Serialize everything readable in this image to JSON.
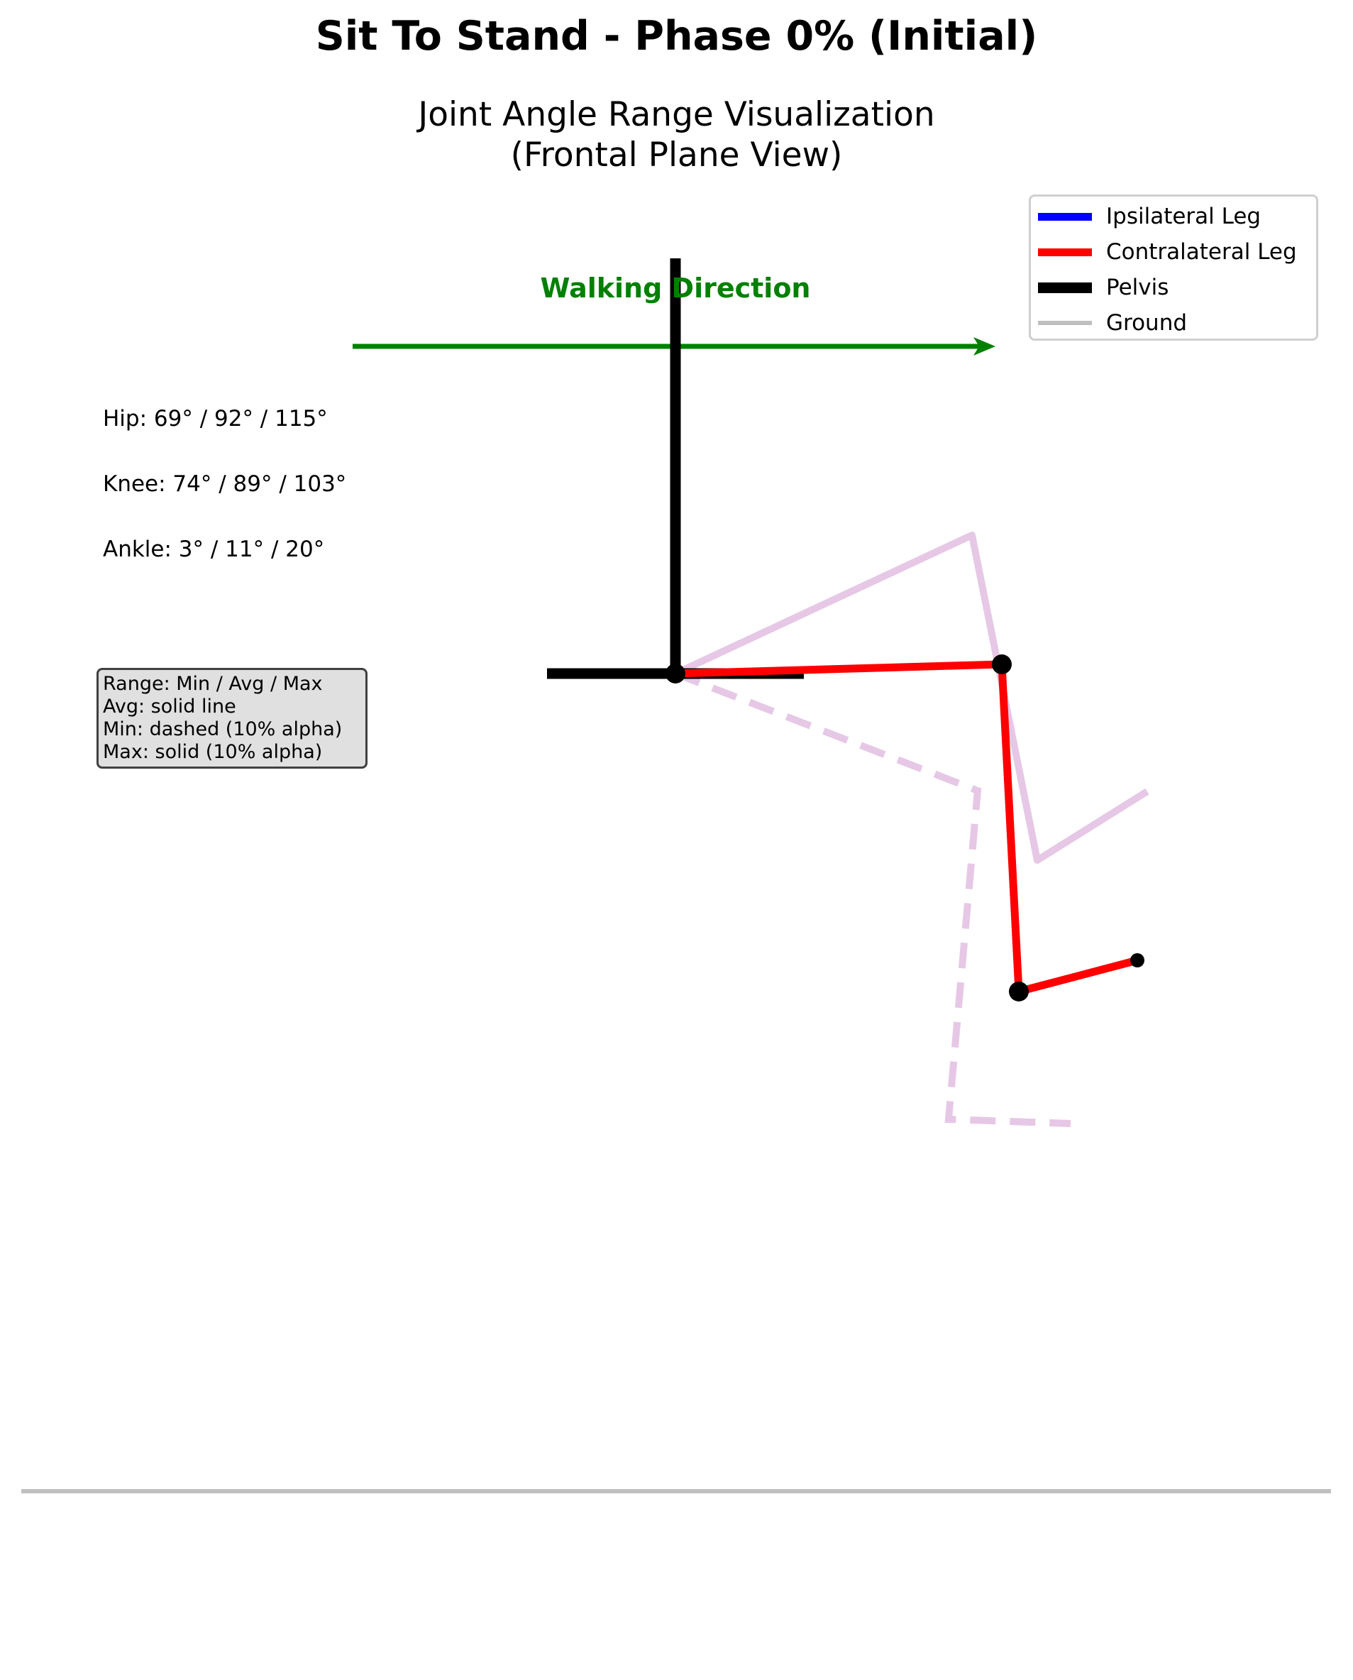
{
  "title": "Sit To Stand - Phase 0% (Initial)",
  "subtitle_line1": "Joint Angle Range Visualization",
  "subtitle_line2": "(Frontal Plane View)",
  "walking_direction": "Walking Direction",
  "angles": {
    "hip": "Hip: 69° / 92° / 115°",
    "knee": "Knee: 74° / 89° / 103°",
    "ankle": "Ankle: 3° / 11° / 20°"
  },
  "info_box": [
    "Range: Min / Avg / Max",
    "Avg: solid line",
    "Min: dashed (10% alpha)",
    "Max: solid (10% alpha)"
  ],
  "legend": [
    {
      "label": "Ipsilateral Leg",
      "color": "#0000ff"
    },
    {
      "label": "Contralateral Leg",
      "color": "#ff0000"
    },
    {
      "label": "Pelvis",
      "color": "#000000"
    },
    {
      "label": "Ground",
      "color": "#bfbfbf"
    }
  ],
  "colors": {
    "contralateral": "#ff0000",
    "pelvis": "#000000",
    "range": "#e6c8e6",
    "arrow": "#008000",
    "ground": "#c0c0c0"
  }
}
